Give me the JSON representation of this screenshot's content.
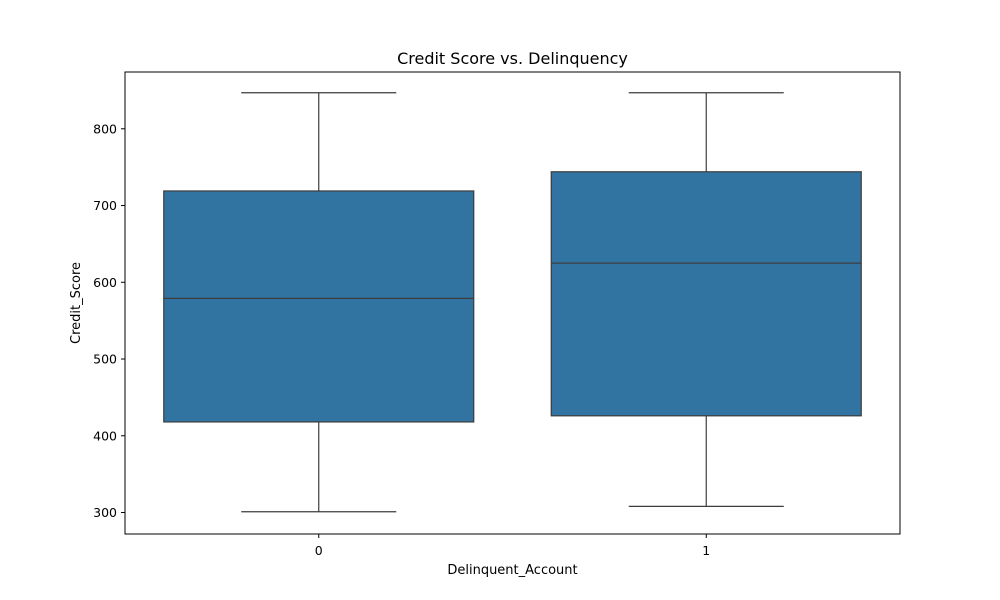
{
  "chart_data": {
    "type": "box",
    "title": "Credit Score vs. Delinquency",
    "xlabel": "Delinquent_Account",
    "ylabel": "Credit_Score",
    "categories": [
      "0",
      "1"
    ],
    "ylim": [
      272,
      874
    ],
    "yticks": [
      300,
      400,
      500,
      600,
      700,
      800
    ],
    "grid": false,
    "box_color": "#3274a1",
    "line_color": "#3d3d3d",
    "boxes": [
      {
        "category": "0",
        "min": 301,
        "q1": 418,
        "median": 579,
        "q3": 719,
        "max": 847
      },
      {
        "category": "1",
        "min": 308,
        "q1": 426,
        "median": 625,
        "q3": 744,
        "max": 847
      }
    ]
  }
}
